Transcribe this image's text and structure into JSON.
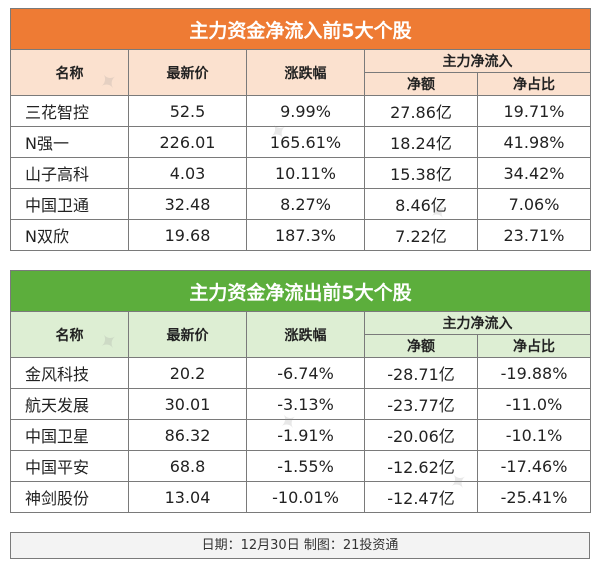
{
  "inflow": {
    "title": "主力资金净流入前5大个股",
    "headers": {
      "name": "名称",
      "price": "最新价",
      "change": "涨跌幅",
      "group": "主力净流入",
      "net": "净额",
      "ratio": "净占比"
    },
    "rows": [
      {
        "name": "三花智控",
        "price": "52.5",
        "change": "9.99%",
        "net": "27.86亿",
        "ratio": "19.71%"
      },
      {
        "name": "N强一",
        "price": "226.01",
        "change": "165.61%",
        "net": "18.24亿",
        "ratio": "41.98%"
      },
      {
        "name": "山子高科",
        "price": "4.03",
        "change": "10.11%",
        "net": "15.38亿",
        "ratio": "34.42%"
      },
      {
        "name": "中国卫通",
        "price": "32.48",
        "change": "8.27%",
        "net": "8.46亿",
        "ratio": "7.06%"
      },
      {
        "name": "N双欣",
        "price": "19.68",
        "change": "187.3%",
        "net": "7.22亿",
        "ratio": "23.71%"
      }
    ]
  },
  "outflow": {
    "title": "主力资金净流出前5大个股",
    "headers": {
      "name": "名称",
      "price": "最新价",
      "change": "涨跌幅",
      "group": "主力净流入",
      "net": "净额",
      "ratio": "净占比"
    },
    "rows": [
      {
        "name": "金风科技",
        "price": "20.2",
        "change": "-6.74%",
        "net": "-28.71亿",
        "ratio": "-19.88%"
      },
      {
        "name": "航天发展",
        "price": "30.01",
        "change": "-3.13%",
        "net": "-23.77亿",
        "ratio": "-11.0%"
      },
      {
        "name": "中国卫星",
        "price": "86.32",
        "change": "-1.91%",
        "net": "-20.06亿",
        "ratio": "-10.1%"
      },
      {
        "name": "中国平安",
        "price": "68.8",
        "change": "-1.55%",
        "net": "-12.62亿",
        "ratio": "-17.46%"
      },
      {
        "name": "神剑股份",
        "price": "13.04",
        "change": "-10.01%",
        "net": "-12.47亿",
        "ratio": "-25.41%"
      }
    ]
  },
  "footer": "日期：12月30日 制图：21投资通",
  "colors": {
    "inflow_title": "#ee7b34",
    "outflow_title": "#5cae3c"
  }
}
